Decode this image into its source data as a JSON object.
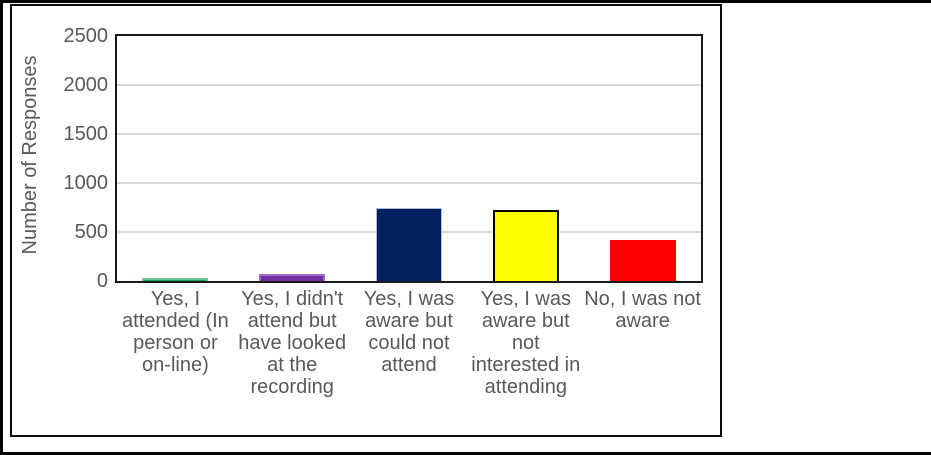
{
  "chart_data": {
    "type": "bar",
    "title": "",
    "xlabel": "",
    "ylabel": "Number of Responses",
    "ylim": [
      0,
      2500
    ],
    "yticks": [
      0,
      500,
      1000,
      1500,
      2000,
      2500
    ],
    "gridlines": [
      500,
      1000,
      1500,
      2000
    ],
    "grid": true,
    "legend_position": "none",
    "categories": [
      "Yes, I attended (In person or on-line)",
      "Yes, I didn't attend but have looked at the recording",
      "Yes, I was aware but could not attend",
      "Yes, I was aware but not interested in attending",
      "No, I was not aware"
    ],
    "category_label_lines": [
      "Yes, I\nattended (In\nperson or\non-line)",
      "Yes, I didn't\nattend but\nhave looked\nat the\nrecording",
      "Yes, I was\naware but\ncould not\nattend",
      "Yes, I was\naware but\nnot\ninterested in\nattending",
      "No, I was not\naware"
    ],
    "values": [
      30,
      75,
      750,
      720,
      420
    ],
    "bar_fill_colors": [
      "#1ea35b",
      "#7030a0",
      "#03215f",
      "#ffff00",
      "#ff0000"
    ],
    "bar_border_colors": [
      "#6cc49a",
      "#9e6bc8",
      "#aebcd6",
      "#000000",
      ""
    ],
    "bar_border_widths": [
      2,
      2,
      1,
      2,
      0
    ]
  },
  "colors": {
    "axis_text": "#595959",
    "gridline": "#d9d9d9",
    "plot_border": "#1a1a1a",
    "frame_border": "#0d0d0d",
    "outer_border": "#000000",
    "background": "#ffffff"
  }
}
